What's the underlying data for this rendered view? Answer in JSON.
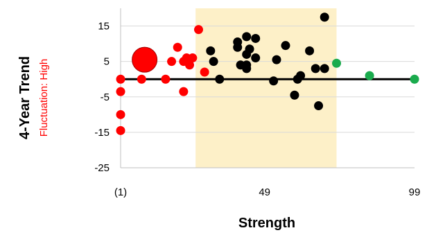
{
  "chart_data": {
    "type": "scatter",
    "title": "",
    "xlabel": "Strength",
    "ylabel": "4-Year Trend",
    "ylabel_sub": "Fluctuation: High",
    "xlim": [
      1,
      99
    ],
    "ylim": [
      -25,
      20
    ],
    "x_ticks": [
      {
        "value": 1,
        "label": "(1)"
      },
      {
        "value": 49,
        "label": "49"
      },
      {
        "value": 99,
        "label": "99"
      }
    ],
    "y_ticks": [
      {
        "value": 15,
        "label": "15"
      },
      {
        "value": 5,
        "label": "5"
      },
      {
        "value": -5,
        "label": "-5"
      },
      {
        "value": -15,
        "label": "-15"
      },
      {
        "value": -25,
        "label": "-25"
      }
    ],
    "grid": {
      "horizontal": true,
      "vertical": false,
      "color": "#d9d9d9"
    },
    "highlight_band": {
      "x_from": 26,
      "x_to": 73,
      "color": "#fdf0c8"
    },
    "reference_line": {
      "y": 0,
      "color": "#000000"
    },
    "colors": {
      "red": "#ff0000",
      "black": "#000000",
      "green": "#1aab4d"
    },
    "points": [
      {
        "x": 1,
        "y": 0,
        "color": "red"
      },
      {
        "x": 1,
        "y": -3.5,
        "color": "red"
      },
      {
        "x": 1,
        "y": -10,
        "color": "red"
      },
      {
        "x": 1,
        "y": -14.5,
        "color": "red"
      },
      {
        "x": 8,
        "y": 0,
        "color": "red"
      },
      {
        "x": 9,
        "y": 5.5,
        "color": "red",
        "size": "large"
      },
      {
        "x": 16,
        "y": 0,
        "color": "red"
      },
      {
        "x": 18,
        "y": 5,
        "color": "red"
      },
      {
        "x": 20,
        "y": 9,
        "color": "red"
      },
      {
        "x": 22,
        "y": -3.5,
        "color": "red"
      },
      {
        "x": 22,
        "y": 5,
        "color": "red"
      },
      {
        "x": 23,
        "y": 6,
        "color": "red"
      },
      {
        "x": 24,
        "y": 4,
        "color": "red"
      },
      {
        "x": 25,
        "y": 6,
        "color": "red"
      },
      {
        "x": 27,
        "y": 14,
        "color": "red"
      },
      {
        "x": 29,
        "y": 2,
        "color": "red"
      },
      {
        "x": 31,
        "y": 8,
        "color": "black"
      },
      {
        "x": 32,
        "y": 5,
        "color": "black"
      },
      {
        "x": 34,
        "y": 0,
        "color": "black"
      },
      {
        "x": 40,
        "y": 9,
        "color": "black"
      },
      {
        "x": 40,
        "y": 10.5,
        "color": "black"
      },
      {
        "x": 41,
        "y": 4,
        "color": "black"
      },
      {
        "x": 43,
        "y": 4,
        "color": "black"
      },
      {
        "x": 43,
        "y": 7,
        "color": "black"
      },
      {
        "x": 43,
        "y": 12,
        "color": "black"
      },
      {
        "x": 43,
        "y": 3,
        "color": "black"
      },
      {
        "x": 44,
        "y": 8.5,
        "color": "black"
      },
      {
        "x": 46,
        "y": 11.5,
        "color": "black"
      },
      {
        "x": 46,
        "y": 6,
        "color": "black"
      },
      {
        "x": 52,
        "y": -0.5,
        "color": "black"
      },
      {
        "x": 53,
        "y": 5.5,
        "color": "black"
      },
      {
        "x": 56,
        "y": 9.5,
        "color": "black"
      },
      {
        "x": 59,
        "y": -4.5,
        "color": "black"
      },
      {
        "x": 60,
        "y": 0,
        "color": "black"
      },
      {
        "x": 61,
        "y": 1,
        "color": "black"
      },
      {
        "x": 64,
        "y": 8,
        "color": "black"
      },
      {
        "x": 66,
        "y": 3,
        "color": "black"
      },
      {
        "x": 67,
        "y": -7.5,
        "color": "black"
      },
      {
        "x": 69,
        "y": 3,
        "color": "black"
      },
      {
        "x": 69,
        "y": 17.5,
        "color": "black"
      },
      {
        "x": 73,
        "y": 4.5,
        "color": "green"
      },
      {
        "x": 84,
        "y": 1,
        "color": "green"
      },
      {
        "x": 99,
        "y": 0,
        "color": "green"
      }
    ]
  }
}
